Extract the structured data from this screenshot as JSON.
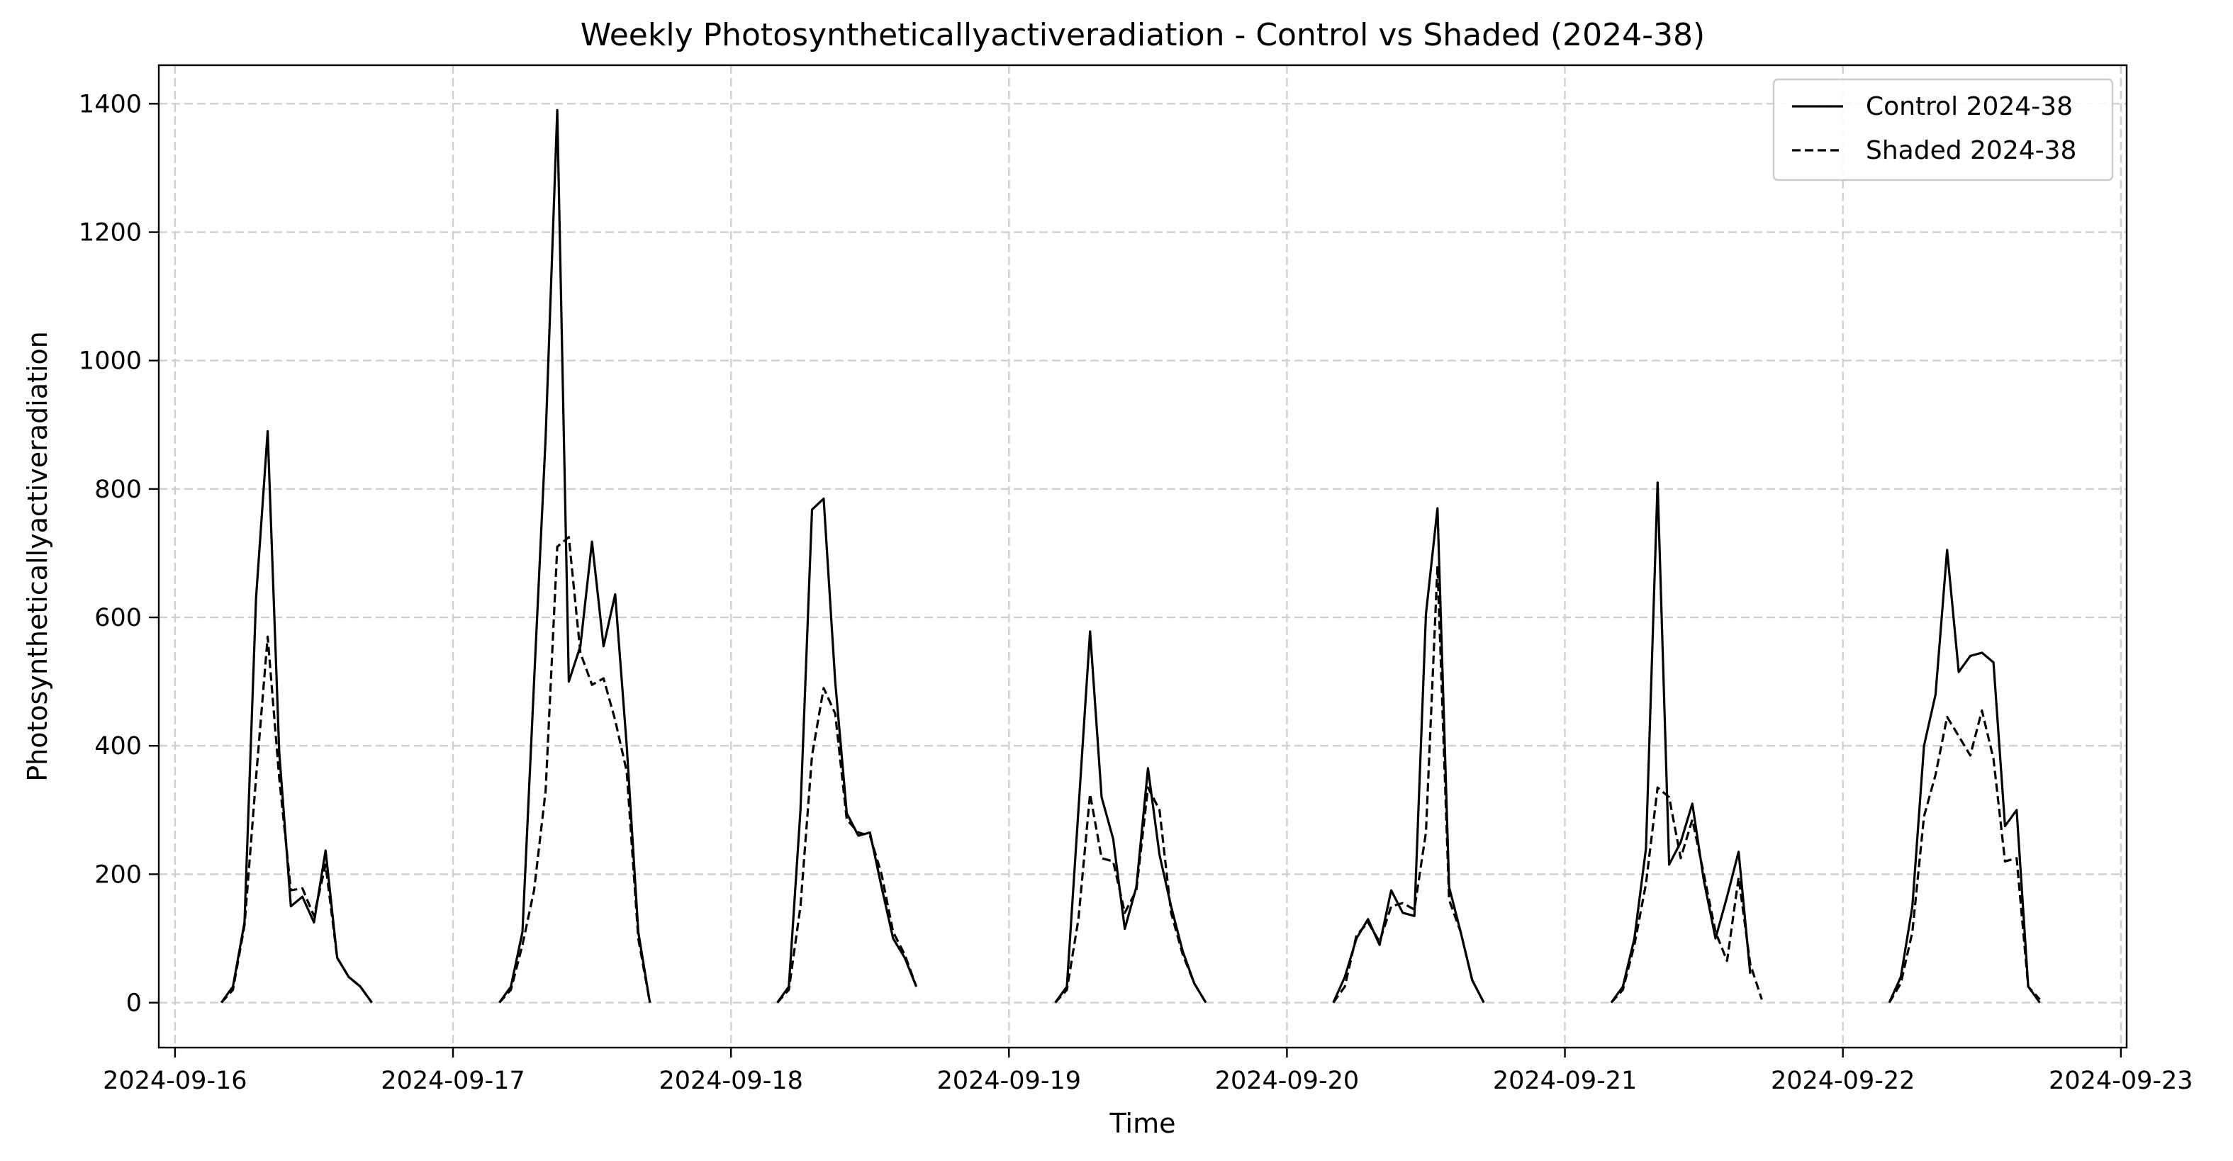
{
  "chart_data": {
    "type": "line",
    "title": "Weekly Photosyntheticallyactiveradiation - Control vs Shaded (2024-38)",
    "xlabel": "Time",
    "ylabel": "Photosyntheticallyactiveradiation",
    "x_unit": "hours since 2024-09-16 00:00",
    "xlim": [
      -1.4,
      168.5
    ],
    "ylim": [
      -70,
      1460
    ],
    "x_ticks": [
      {
        "value": 0,
        "label": "2024-09-16"
      },
      {
        "value": 24,
        "label": "2024-09-17"
      },
      {
        "value": 48,
        "label": "2024-09-18"
      },
      {
        "value": 72,
        "label": "2024-09-19"
      },
      {
        "value": 96,
        "label": "2024-09-20"
      },
      {
        "value": 120,
        "label": "2024-09-21"
      },
      {
        "value": 144,
        "label": "2024-09-22"
      },
      {
        "value": 168,
        "label": "2024-09-23"
      }
    ],
    "y_ticks": [
      0,
      200,
      400,
      600,
      800,
      1000,
      1200,
      1400
    ],
    "grid": true,
    "legend_position": "top-right",
    "series": [
      {
        "name": "Control 2024-38",
        "style": "solid",
        "color": "#000000",
        "segments": [
          [
            [
              4,
              0
            ],
            [
              5,
              25
            ],
            [
              6,
              125
            ],
            [
              7,
              630
            ],
            [
              8,
              890
            ],
            [
              9,
              390
            ],
            [
              10,
              150
            ],
            [
              11,
              165
            ],
            [
              12,
              125
            ],
            [
              13,
              237
            ],
            [
              14,
              70
            ],
            [
              15,
              40
            ],
            [
              16,
              25
            ],
            [
              17,
              0
            ]
          ],
          [
            [
              28,
              0
            ],
            [
              29,
              25
            ],
            [
              30,
              110
            ],
            [
              31,
              500
            ],
            [
              32,
              880
            ],
            [
              33,
              1390
            ],
            [
              34,
              500
            ],
            [
              35,
              555
            ],
            [
              36,
              718
            ],
            [
              37,
              555
            ],
            [
              38,
              636
            ],
            [
              39,
              400
            ],
            [
              40,
              110
            ],
            [
              41,
              0
            ]
          ],
          [
            [
              52,
              0
            ],
            [
              53,
              25
            ],
            [
              54,
              300
            ],
            [
              55,
              768
            ],
            [
              56,
              785
            ],
            [
              57,
              500
            ],
            [
              58,
              295
            ],
            [
              59,
              260
            ],
            [
              60,
              265
            ],
            [
              61,
              180
            ],
            [
              62,
              100
            ],
            [
              63,
              70
            ],
            [
              64,
              25
            ]
          ],
          [
            [
              76,
              0
            ],
            [
              77,
              25
            ],
            [
              78,
              300
            ],
            [
              79,
              578
            ],
            [
              80,
              320
            ],
            [
              81,
              255
            ],
            [
              82,
              115
            ],
            [
              83,
              180
            ],
            [
              84,
              365
            ],
            [
              85,
              230
            ],
            [
              86,
              150
            ],
            [
              87,
              80
            ],
            [
              88,
              30
            ],
            [
              89,
              0
            ]
          ],
          [
            [
              100,
              0
            ],
            [
              101,
              40
            ],
            [
              102,
              100
            ],
            [
              103,
              130
            ],
            [
              104,
              90
            ],
            [
              105,
              175
            ],
            [
              106,
              140
            ],
            [
              107,
              135
            ],
            [
              108,
              605
            ],
            [
              109,
              770
            ],
            [
              110,
              180
            ],
            [
              111,
              110
            ],
            [
              112,
              35
            ],
            [
              113,
              0
            ]
          ],
          [
            [
              124,
              0
            ],
            [
              125,
              25
            ],
            [
              126,
              100
            ],
            [
              127,
              240
            ],
            [
              128,
              810
            ],
            [
              129,
              215
            ],
            [
              130,
              250
            ],
            [
              131,
              310
            ],
            [
              132,
              190
            ],
            [
              133,
              100
            ],
            [
              134,
              165
            ],
            [
              135,
              235
            ],
            [
              136,
              45
            ]
          ],
          [
            [
              148,
              0
            ],
            [
              149,
              40
            ],
            [
              150,
              150
            ],
            [
              151,
              400
            ],
            [
              152,
              480
            ],
            [
              153,
              705
            ],
            [
              154,
              515
            ],
            [
              155,
              540
            ],
            [
              156,
              545
            ],
            [
              157,
              530
            ],
            [
              158,
              275
            ],
            [
              159,
              300
            ],
            [
              160,
              25
            ],
            [
              161,
              0
            ]
          ]
        ]
      },
      {
        "name": "Shaded 2024-38",
        "style": "dashed",
        "color": "#000000",
        "segments": [
          [
            [
              4,
              0
            ],
            [
              5,
              20
            ],
            [
              6,
              120
            ],
            [
              7,
              350
            ],
            [
              8,
              570
            ],
            [
              9,
              350
            ],
            [
              10,
              175
            ],
            [
              11,
              178
            ],
            [
              12,
              135
            ],
            [
              13,
              215
            ],
            [
              14,
              70
            ],
            [
              15,
              40
            ],
            [
              16,
              25
            ],
            [
              17,
              0
            ]
          ],
          [
            [
              28,
              0
            ],
            [
              29,
              20
            ],
            [
              30,
              90
            ],
            [
              31,
              175
            ],
            [
              32,
              330
            ],
            [
              33,
              710
            ],
            [
              34,
              725
            ],
            [
              35,
              545
            ],
            [
              36,
              495
            ],
            [
              37,
              505
            ],
            [
              38,
              440
            ],
            [
              39,
              360
            ],
            [
              40,
              100
            ],
            [
              41,
              0
            ]
          ],
          [
            [
              52,
              0
            ],
            [
              53,
              20
            ],
            [
              54,
              150
            ],
            [
              55,
              385
            ],
            [
              56,
              490
            ],
            [
              57,
              450
            ],
            [
              58,
              285
            ],
            [
              59,
              265
            ],
            [
              60,
              260
            ],
            [
              61,
              200
            ],
            [
              62,
              110
            ],
            [
              63,
              75
            ],
            [
              64,
              25
            ]
          ],
          [
            [
              76,
              0
            ],
            [
              77,
              20
            ],
            [
              78,
              130
            ],
            [
              79,
              325
            ],
            [
              80,
              225
            ],
            [
              81,
              220
            ],
            [
              82,
              140
            ],
            [
              83,
              175
            ],
            [
              84,
              335
            ],
            [
              85,
              300
            ],
            [
              86,
              140
            ],
            [
              87,
              75
            ],
            [
              88,
              30
            ],
            [
              89,
              0
            ]
          ],
          [
            [
              100,
              0
            ],
            [
              101,
              25
            ],
            [
              102,
              105
            ],
            [
              103,
              125
            ],
            [
              104,
              95
            ],
            [
              105,
              150
            ],
            [
              106,
              155
            ],
            [
              107,
              145
            ],
            [
              108,
              265
            ],
            [
              109,
              680
            ],
            [
              110,
              160
            ],
            [
              111,
              110
            ],
            [
              112,
              35
            ],
            [
              113,
              0
            ]
          ],
          [
            [
              124,
              0
            ],
            [
              125,
              20
            ],
            [
              126,
              90
            ],
            [
              127,
              185
            ],
            [
              128,
              335
            ],
            [
              129,
              320
            ],
            [
              130,
              225
            ],
            [
              131,
              285
            ],
            [
              132,
              200
            ],
            [
              133,
              110
            ],
            [
              134,
              65
            ],
            [
              135,
              195
            ],
            [
              136,
              60
            ],
            [
              137,
              5
            ]
          ],
          [
            [
              148,
              0
            ],
            [
              149,
              30
            ],
            [
              150,
              110
            ],
            [
              151,
              290
            ],
            [
              152,
              355
            ],
            [
              153,
              445
            ],
            [
              154,
              415
            ],
            [
              155,
              385
            ],
            [
              156,
              455
            ],
            [
              157,
              380
            ],
            [
              158,
              220
            ],
            [
              159,
              225
            ],
            [
              160,
              25
            ],
            [
              161,
              5
            ]
          ]
        ]
      }
    ]
  }
}
